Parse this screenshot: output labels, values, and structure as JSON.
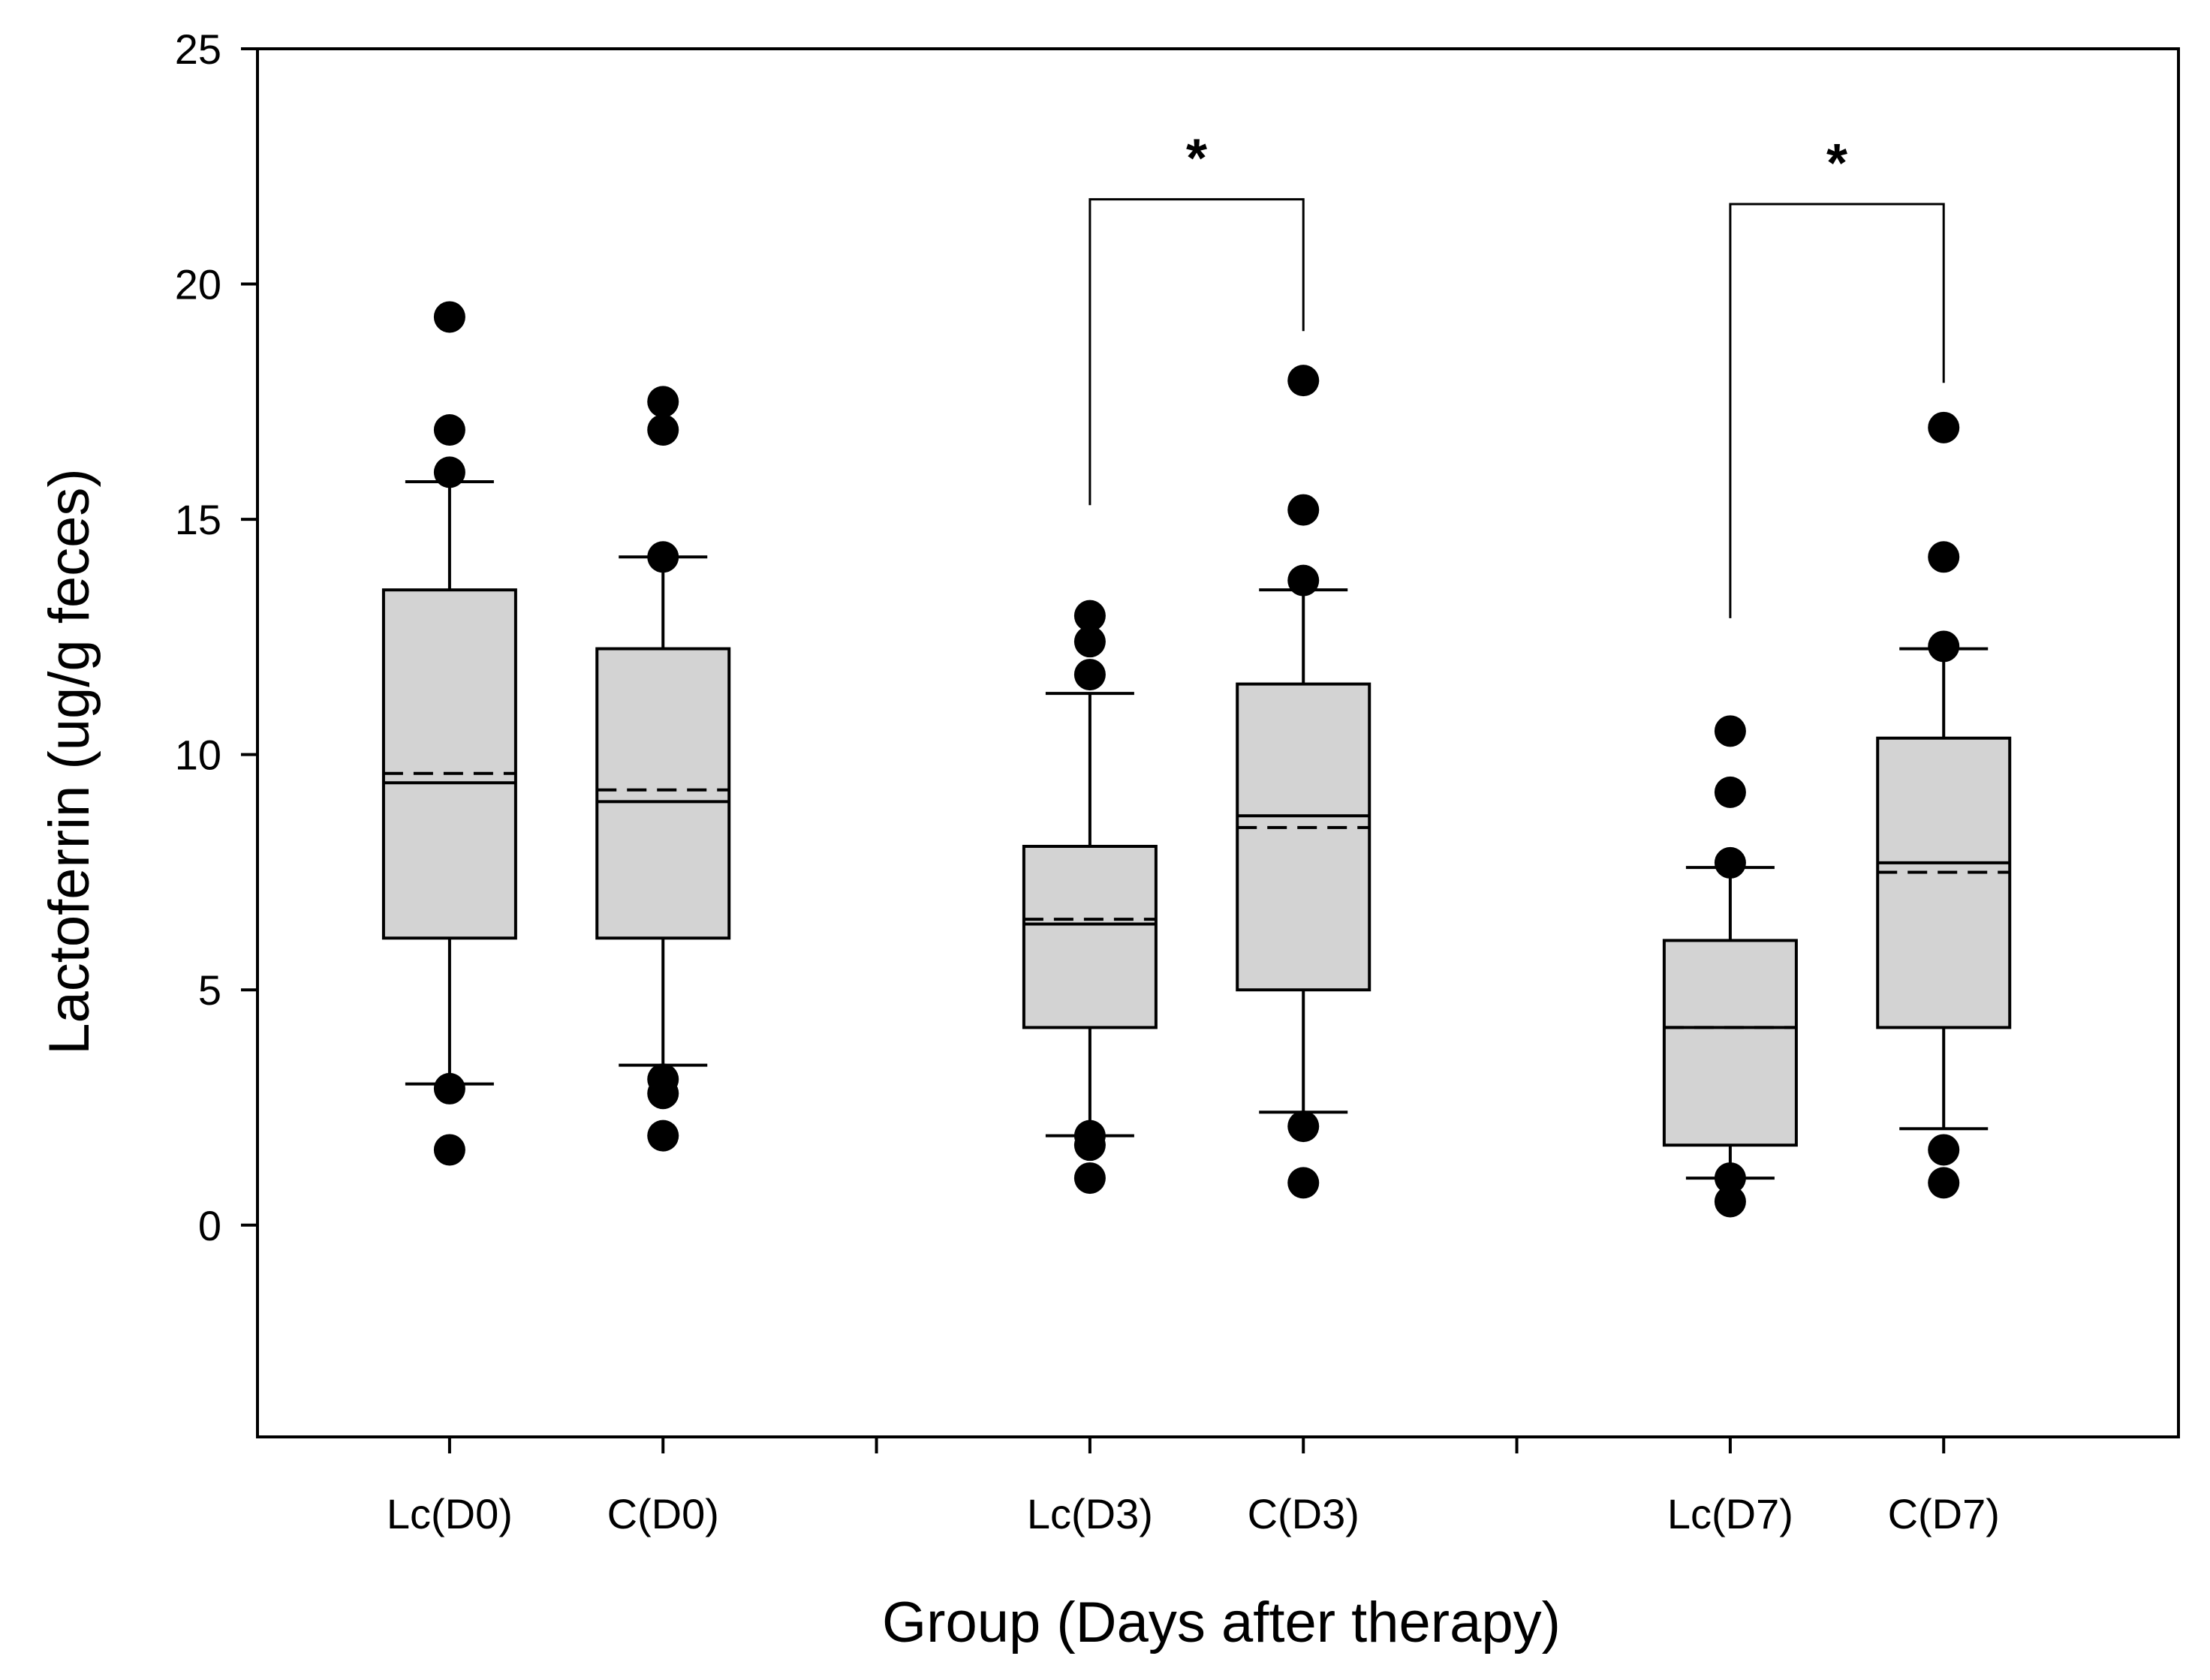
{
  "chart_data": {
    "type": "box",
    "title": "",
    "xlabel": "Group (Days after therapy)",
    "ylabel": "Lactoferrin (ug/g feces)",
    "ylim": [
      -4.5,
      25
    ],
    "yticks": [
      0,
      5,
      10,
      15,
      20,
      25
    ],
    "colors": {
      "box_fill": "#d3d3d3",
      "line": "#000000"
    },
    "groups": [
      {
        "label": "Lc(D0)",
        "position": 1,
        "q1": 6.1,
        "median": 9.4,
        "mean": 9.6,
        "q3": 13.5,
        "whisker_low": 3.0,
        "whisker_high": 15.8,
        "outliers": [
          1.6,
          2.9,
          16.0,
          16.9,
          19.3
        ]
      },
      {
        "label": "C(D0)",
        "position": 2,
        "q1": 6.1,
        "median": 9.0,
        "mean": 9.25,
        "q3": 12.25,
        "whisker_low": 3.4,
        "whisker_high": 14.2,
        "outliers": [
          1.9,
          2.8,
          3.1,
          14.2,
          16.9,
          17.5
        ]
      },
      {
        "label": "Lc(D3)",
        "position": 4,
        "q1": 4.2,
        "median": 6.4,
        "mean": 6.5,
        "q3": 8.05,
        "whisker_low": 1.9,
        "whisker_high": 11.3,
        "outliers": [
          1.0,
          1.7,
          1.9,
          11.7,
          12.4,
          12.95
        ]
      },
      {
        "label": "C(D3)",
        "position": 5,
        "q1": 5.0,
        "median": 8.7,
        "mean": 8.45,
        "q3": 11.5,
        "whisker_low": 2.4,
        "whisker_high": 13.5,
        "outliers": [
          0.9,
          2.1,
          13.7,
          15.2,
          17.95
        ]
      },
      {
        "label": "Lc(D7)",
        "position": 7,
        "q1": 1.7,
        "median": 4.2,
        "mean": 4.2,
        "q3": 6.05,
        "whisker_low": 1.0,
        "whisker_high": 7.6,
        "outliers": [
          0.5,
          1.0,
          7.7,
          9.2,
          10.5
        ]
      },
      {
        "label": "C(D7)",
        "position": 8,
        "q1": 4.2,
        "median": 7.7,
        "mean": 7.5,
        "q3": 10.35,
        "whisker_low": 2.05,
        "whisker_high": 12.25,
        "outliers": [
          0.9,
          1.6,
          12.3,
          14.2,
          16.95
        ]
      }
    ],
    "x_separators": [
      3,
      6
    ],
    "x_range": [
      0.1,
      9.1
    ],
    "significance": [
      {
        "from": "Lc(D3)",
        "to": "C(D3)",
        "label": "*",
        "bar_y": 21.8,
        "left_end": 15.3,
        "right_end": 19.0
      },
      {
        "from": "Lc(D7)",
        "to": "C(D7)",
        "label": "*",
        "bar_y": 21.7,
        "left_end": 12.9,
        "right_end": 17.9
      }
    ]
  }
}
